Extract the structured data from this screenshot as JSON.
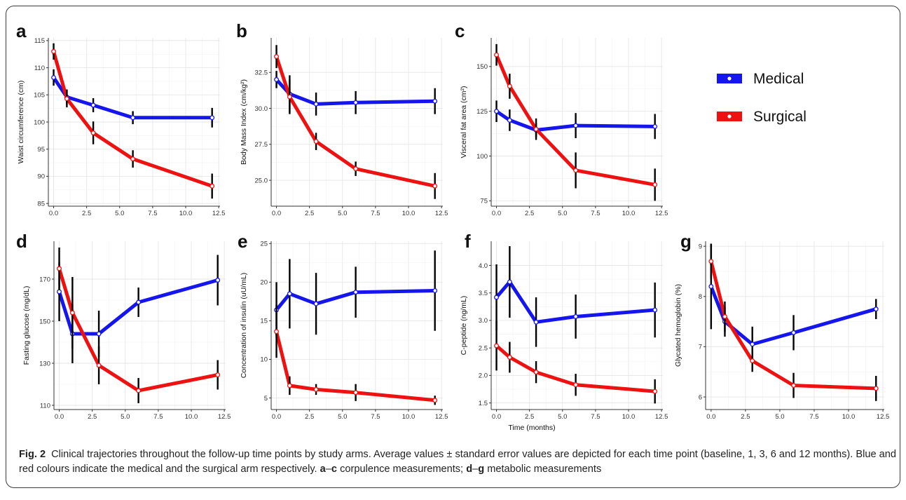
{
  "caption": {
    "label": "Fig. 2",
    "text_1": "Clinical trajectories throughout the follow-up time points by study arms. Average values ± standard error values are depicted for each time point (baseline, 1, 3, 6 and 12 months). Blue and red colours indicate the medical and the surgical arm respectively.",
    "range_1_start": "a",
    "range_1_end": "c",
    "text_2": "corpulence measurements;",
    "range_2_start": "d",
    "range_2_end": "g",
    "text_3": "metabolic measurements"
  },
  "shared_xlabel": "Time (months)",
  "legend": [
    {
      "label": "Medical",
      "color": "#1515ee"
    },
    {
      "label": "Surgical",
      "color": "#ee1111"
    }
  ],
  "colors": {
    "medical": "#1515ee",
    "surgical": "#ee1111",
    "error_bar": "#000000",
    "grid": "#e6e6e6"
  },
  "chart_data": [
    {
      "panel": "a",
      "type": "line",
      "ylabel": "Waist circumference (cm)",
      "x": [
        0,
        1,
        3,
        6,
        12
      ],
      "xlim": [
        -0.4,
        12.6
      ],
      "ylim": [
        84.5,
        115.5
      ],
      "xticks": [
        "0.0",
        "2.5",
        "5.0",
        "7.5",
        "10.0",
        "12.5"
      ],
      "yticks": [
        "85",
        "90",
        "95",
        "100",
        "105",
        "110",
        "115"
      ],
      "series": [
        {
          "name": "Medical",
          "values": [
            108.2,
            104.6,
            103.1,
            100.8,
            100.8
          ],
          "err": [
            1.5,
            1.4,
            1.3,
            1.2,
            1.8
          ]
        },
        {
          "name": "Surgical",
          "values": [
            113.0,
            104.3,
            98.0,
            93.2,
            88.2
          ],
          "err": [
            1.5,
            1.6,
            2.1,
            1.6,
            2.3
          ]
        }
      ]
    },
    {
      "panel": "b",
      "type": "line",
      "ylabel": "Body Mass Index (cm/kg²)",
      "x": [
        0,
        1,
        3,
        6,
        12
      ],
      "xlim": [
        -0.4,
        12.6
      ],
      "ylim": [
        23.2,
        34.9
      ],
      "xticks": [
        "0.0",
        "2.5",
        "5.0",
        "7.5",
        "10.0",
        "12.5"
      ],
      "yticks": [
        "25.0",
        "27.5",
        "30.0",
        "32.5"
      ],
      "series": [
        {
          "name": "Medical",
          "values": [
            32.0,
            31.0,
            30.3,
            30.4,
            30.5
          ],
          "err": [
            0.6,
            1.3,
            0.8,
            0.8,
            0.9
          ]
        },
        {
          "name": "Surgical",
          "values": [
            33.6,
            30.8,
            27.7,
            25.8,
            24.6
          ],
          "err": [
            0.8,
            1.2,
            0.6,
            0.5,
            0.9
          ]
        }
      ]
    },
    {
      "panel": "c",
      "type": "line",
      "ylabel": "Visceral fat area (cm²)",
      "x": [
        0,
        1,
        3,
        6,
        12
      ],
      "xlim": [
        -0.4,
        12.6
      ],
      "ylim": [
        72,
        166
      ],
      "xticks": [
        "0.0",
        "2.5",
        "5.0",
        "7.5",
        "10.0",
        "12.5"
      ],
      "yticks": [
        "75",
        "100",
        "125",
        "150"
      ],
      "series": [
        {
          "name": "Medical",
          "values": [
            125.0,
            120.0,
            114.5,
            117.0,
            116.5
          ],
          "err": [
            6,
            6,
            4,
            7,
            7
          ]
        },
        {
          "name": "Surgical",
          "values": [
            156.5,
            139.0,
            115.0,
            92.0,
            84.0
          ],
          "err": [
            6,
            7,
            6,
            10,
            9
          ]
        }
      ]
    },
    {
      "panel": "d",
      "type": "line",
      "ylabel": "Fasting glucose (mg/dL)",
      "x": [
        0,
        1,
        3,
        6,
        12
      ],
      "xlim": [
        -0.4,
        12.6
      ],
      "ylim": [
        108,
        188
      ],
      "xticks": [
        "0.0",
        "2.5",
        "5.0",
        "7.5",
        "10.0",
        "12.5"
      ],
      "yticks": [
        "110",
        "130",
        "150",
        "170"
      ],
      "series": [
        {
          "name": "Medical",
          "values": [
            164.0,
            144.0,
            144.0,
            159.0,
            169.5
          ],
          "err": [
            14,
            14,
            11,
            7,
            12
          ]
        },
        {
          "name": "Surgical",
          "values": [
            175.0,
            154.0,
            129.0,
            117.0,
            124.5
          ],
          "err": [
            10,
            17,
            9,
            6,
            7
          ]
        }
      ]
    },
    {
      "panel": "e",
      "type": "line",
      "ylabel": "Concentration of insulin (uU/mL)",
      "x": [
        0,
        1,
        3,
        6,
        12
      ],
      "xlim": [
        -0.4,
        12.6
      ],
      "ylim": [
        3.5,
        25.3
      ],
      "xticks": [
        "0.0",
        "2.5",
        "5.0",
        "7.5",
        "10.0",
        "12.5"
      ],
      "yticks": [
        "5",
        "10",
        "15",
        "20",
        "25"
      ],
      "series": [
        {
          "name": "Medical",
          "values": [
            16.4,
            18.5,
            17.2,
            18.7,
            18.9
          ],
          "err": [
            3.6,
            4.5,
            4.0,
            3.3,
            5.2
          ]
        },
        {
          "name": "Surgical",
          "values": [
            13.6,
            6.6,
            6.1,
            5.7,
            4.7
          ],
          "err": [
            3.4,
            1.2,
            0.7,
            1.1,
            0.6
          ]
        }
      ]
    },
    {
      "panel": "f",
      "type": "line",
      "ylabel": "C-peptide (ng/mL)",
      "x": [
        0,
        1,
        3,
        6,
        12
      ],
      "xlim": [
        -0.4,
        12.6
      ],
      "ylim": [
        1.38,
        4.44
      ],
      "xticks": [
        "0.0",
        "2.5",
        "5.0",
        "7.5",
        "10.0",
        "12.5"
      ],
      "yticks": [
        "1.5",
        "2.0",
        "2.5",
        "3.0",
        "3.5",
        "4.0"
      ],
      "series": [
        {
          "name": "Medical",
          "values": [
            3.42,
            3.7,
            2.97,
            3.07,
            3.19
          ],
          "err": [
            0.6,
            0.65,
            0.45,
            0.4,
            0.5
          ]
        },
        {
          "name": "Surgical",
          "values": [
            2.54,
            2.33,
            2.06,
            1.83,
            1.71
          ],
          "err": [
            0.45,
            0.28,
            0.2,
            0.2,
            0.22
          ]
        }
      ]
    },
    {
      "panel": "g",
      "type": "line",
      "ylabel": "Glycated hemoglobin (%)",
      "x": [
        0,
        1,
        3,
        6,
        12
      ],
      "xlim": [
        -0.4,
        12.6
      ],
      "ylim": [
        5.75,
        9.1
      ],
      "xticks": [
        "0.0",
        "2.5",
        "5.0",
        "7.5",
        "10.0",
        "12.5"
      ],
      "yticks": [
        "6",
        "7",
        "8",
        "9"
      ],
      "series": [
        {
          "name": "Medical",
          "values": [
            8.2,
            7.5,
            7.05,
            7.28,
            7.75
          ],
          "err": [
            0.85,
            0.3,
            0.35,
            0.35,
            0.2
          ]
        },
        {
          "name": "Surgical",
          "values": [
            8.7,
            7.6,
            6.72,
            6.23,
            6.17
          ],
          "err": [
            0.35,
            0.3,
            0.22,
            0.25,
            0.25
          ]
        }
      ]
    }
  ]
}
